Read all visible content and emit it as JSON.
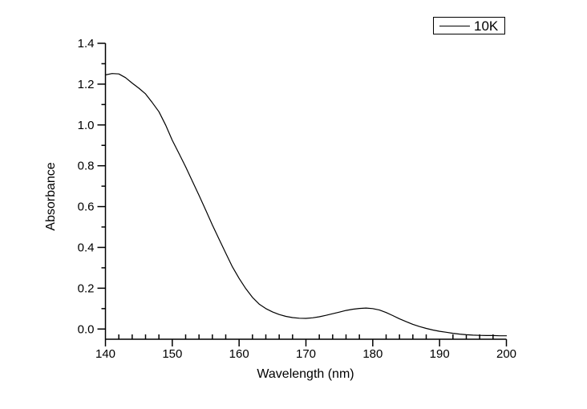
{
  "figure": {
    "background": "#ffffff",
    "axis_color": "#000000"
  },
  "legend": {
    "label": "10K",
    "line_color": "#000000"
  },
  "chart_data": {
    "type": "line",
    "title": "",
    "xlabel": "Wavelength (nm)",
    "ylabel": "Absorbance",
    "xlim": [
      140,
      200
    ],
    "ylim": [
      -0.05,
      1.4
    ],
    "grid": false,
    "legend_position": "top-right",
    "x_tick_labels": [
      "140",
      "150",
      "160",
      "170",
      "180",
      "190",
      "200"
    ],
    "x_major_ticks": [
      140,
      150,
      160,
      170,
      180,
      190,
      200
    ],
    "x_minor_ticks": [
      142,
      144,
      146,
      148,
      152,
      154,
      156,
      158,
      162,
      164,
      166,
      168,
      172,
      174,
      176,
      178,
      182,
      184,
      186,
      188,
      192,
      194,
      196,
      198
    ],
    "y_tick_labels": [
      "0.0",
      "0.2",
      "0.4",
      "0.6",
      "0.8",
      "1.0",
      "1.2",
      "1.4"
    ],
    "y_major_ticks": [
      0.0,
      0.2,
      0.4,
      0.6,
      0.8,
      1.0,
      1.2,
      1.4
    ],
    "y_minor_ticks": [
      0.1,
      0.3,
      0.5,
      0.7,
      0.9,
      1.1,
      1.3
    ],
    "series": [
      {
        "name": "10K",
        "color": "#000000",
        "x": [
          140,
          141,
          142,
          143,
          144,
          145,
          146,
          147,
          148,
          149,
          150,
          151,
          152,
          153,
          154,
          155,
          156,
          157,
          158,
          159,
          160,
          161,
          162,
          163,
          164,
          165,
          166,
          167,
          168,
          169,
          170,
          171,
          172,
          173,
          174,
          175,
          176,
          177,
          178,
          179,
          180,
          181,
          182,
          183,
          184,
          185,
          186,
          187,
          188,
          189,
          190,
          191,
          192,
          193,
          194,
          195,
          196,
          197,
          198,
          199,
          200
        ],
        "y": [
          1.245,
          1.252,
          1.25,
          1.232,
          1.205,
          1.18,
          1.152,
          1.11,
          1.065,
          1.0,
          0.925,
          0.86,
          0.795,
          0.725,
          0.655,
          0.583,
          0.51,
          0.44,
          0.372,
          0.305,
          0.248,
          0.198,
          0.155,
          0.122,
          0.1,
          0.084,
          0.071,
          0.062,
          0.056,
          0.053,
          0.052,
          0.055,
          0.06,
          0.067,
          0.075,
          0.083,
          0.091,
          0.097,
          0.101,
          0.103,
          0.1,
          0.093,
          0.081,
          0.066,
          0.05,
          0.036,
          0.023,
          0.012,
          0.003,
          -0.005,
          -0.011,
          -0.016,
          -0.021,
          -0.025,
          -0.028,
          -0.03,
          -0.031,
          -0.032,
          -0.032,
          -0.033,
          -0.033
        ]
      }
    ]
  }
}
